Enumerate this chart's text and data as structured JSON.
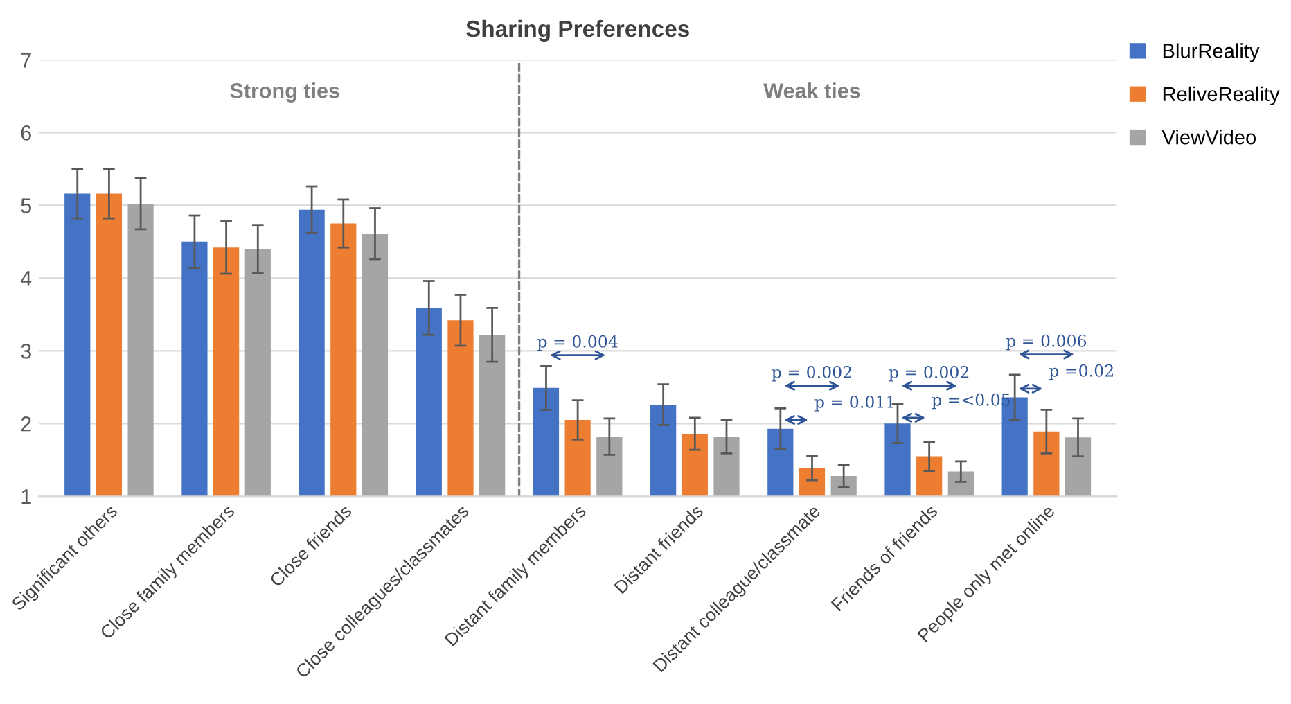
{
  "chart_data": {
    "type": "bar",
    "title": "Sharing Preferences",
    "categories": [
      "Significant others",
      "Close family members",
      "Close friends",
      "Close colleagues/classmates",
      "Distant family members",
      "Distant friends",
      "Distant colleague/classmate",
      "Friends of friends",
      "People only met online"
    ],
    "series": [
      {
        "name": "BlurReality",
        "color": "#4472c4",
        "values": [
          5.16,
          4.5,
          4.94,
          3.59,
          2.49,
          2.26,
          1.93,
          2.0,
          2.36
        ],
        "errors": [
          0.34,
          0.36,
          0.32,
          0.37,
          0.3,
          0.28,
          0.28,
          0.27,
          0.31
        ]
      },
      {
        "name": "ReliveReality",
        "color": "#ed7d31",
        "values": [
          5.16,
          4.42,
          4.75,
          3.42,
          2.05,
          1.86,
          1.39,
          1.55,
          1.89
        ],
        "errors": [
          0.34,
          0.36,
          0.33,
          0.35,
          0.27,
          0.22,
          0.17,
          0.2,
          0.3
        ]
      },
      {
        "name": "ViewVideo",
        "color": "#a5a5a5",
        "values": [
          5.02,
          4.4,
          4.61,
          3.22,
          1.82,
          1.82,
          1.28,
          1.34,
          1.81
        ],
        "errors": [
          0.35,
          0.33,
          0.35,
          0.37,
          0.25,
          0.23,
          0.15,
          0.14,
          0.26
        ]
      }
    ],
    "ylim": [
      1,
      7
    ],
    "yticks": [
      1,
      2,
      3,
      4,
      5,
      6,
      7
    ],
    "grid": "y",
    "legend": "top right",
    "annotations": [
      "Strong ties",
      "Weak ties",
      "p = 0.004",
      "p = 0.002",
      "p = 0.011",
      "p = 0.002",
      "p =<0.05",
      "p = 0.006",
      "p =0.02"
    ]
  }
}
